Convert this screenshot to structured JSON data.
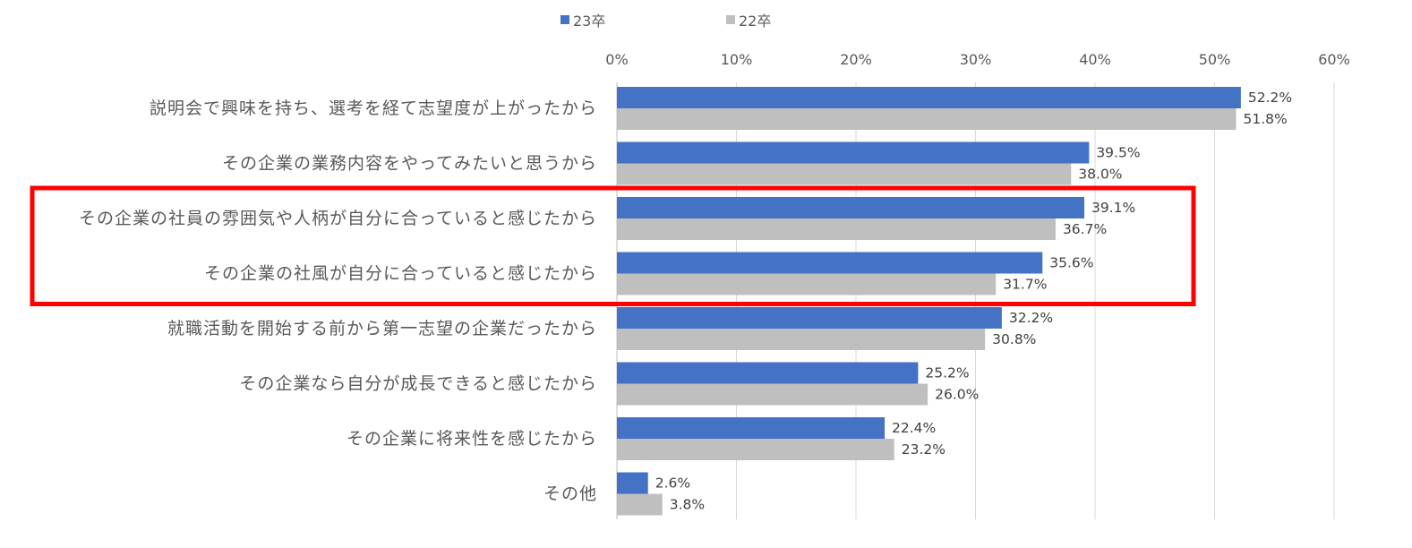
{
  "chart_data": {
    "type": "bar",
    "orientation": "horizontal",
    "categories": [
      "説明会で興味を持ち、選考を経て志望度が上がったから",
      "その企業の業務内容をやってみたいと思うから",
      "その企業の社員の雰囲気や人柄が自分に合っていると感じたから",
      "その企業の社風が自分に合っていると感じたから",
      "就職活動を開始する前から第一志望の企業だったから",
      "その企業なら自分が成長できると感じたから",
      "その企業に将来性を感じたから",
      "その他"
    ],
    "series": [
      {
        "name": "23卒",
        "color": "#4472c4",
        "values": [
          52.2,
          39.5,
          39.1,
          35.6,
          32.2,
          25.2,
          22.4,
          2.6
        ],
        "labels": [
          "52.2%",
          "39.5%",
          "39.1%",
          "35.6%",
          "32.2%",
          "25.2%",
          "22.4%",
          "2.6%"
        ]
      },
      {
        "name": "22卒",
        "color": "#bfbfbf",
        "values": [
          51.8,
          38.0,
          36.7,
          31.7,
          30.8,
          26.0,
          23.2,
          3.8
        ],
        "labels": [
          "51.8%",
          "38.0%",
          "36.7%",
          "31.7%",
          "30.8%",
          "26.0%",
          "23.2%",
          "3.8%"
        ]
      }
    ],
    "xlim": [
      0,
      60
    ],
    "xticks": [
      0,
      10,
      20,
      30,
      40,
      50,
      60
    ],
    "xtick_labels": [
      "0%",
      "10%",
      "20%",
      "30%",
      "40%",
      "50%",
      "60%"
    ],
    "axis_position": "top",
    "grid": true,
    "legend_position": "top",
    "highlight": {
      "categories": [
        2,
        3
      ],
      "color": "#ff0000"
    }
  }
}
